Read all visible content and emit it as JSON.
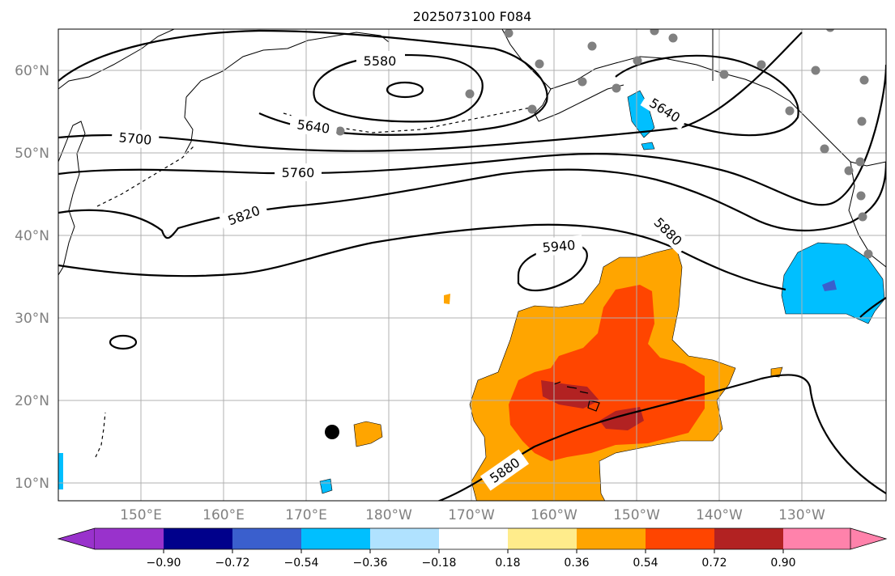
{
  "title": "2025073100 F084",
  "lat_ticks": [
    "60°N",
    "50°N",
    "40°N",
    "30°N",
    "20°N",
    "10°N"
  ],
  "lon_ticks": [
    "150°E",
    "160°E",
    "170°E",
    "180°W",
    "170°W",
    "160°W",
    "150°W",
    "140°W",
    "130°W"
  ],
  "colorbar": {
    "labels": [
      "−0.90",
      "−0.72",
      "−0.54",
      "−0.36",
      "−0.18",
      "0.18",
      "0.36",
      "0.54",
      "0.72",
      "0.90"
    ],
    "colors": [
      "#9932cc",
      "#00008b",
      "#3a5fcd",
      "#00bfff",
      "#b0e2ff",
      "#ffffff",
      "#ffec8b",
      "#ffa500",
      "#ff4500",
      "#b22222",
      "#ff82ab"
    ]
  },
  "contour_labels": [
    "5580",
    "5640",
    "5640",
    "5700",
    "5760",
    "5820",
    "5880",
    "5940",
    "5880"
  ],
  "colors": {
    "land_outline": "#000000",
    "grid": "#b0b0b0",
    "stations": "#808080",
    "marker": "#000000"
  }
}
